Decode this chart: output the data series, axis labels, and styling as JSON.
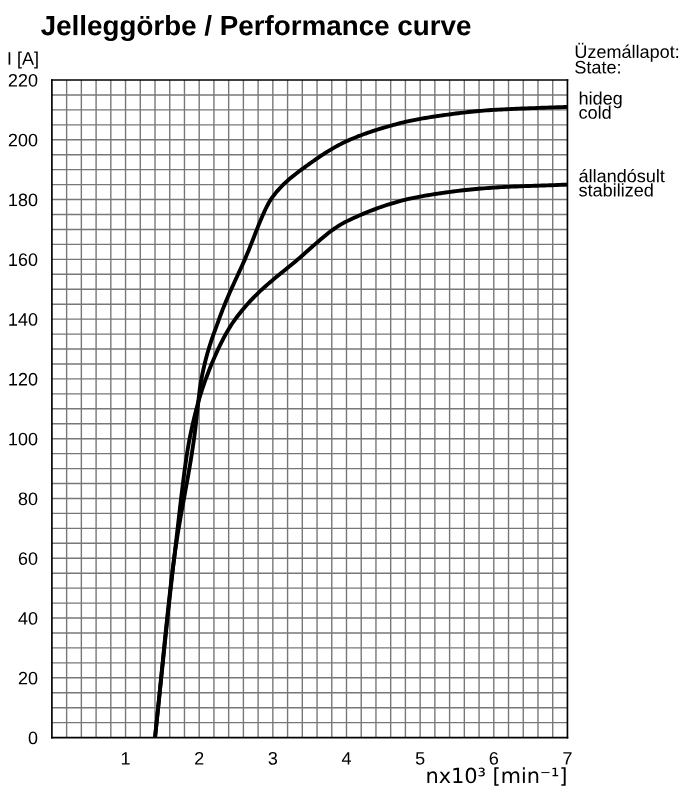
{
  "chart_data": {
    "type": "line",
    "title": "Jelleggörbe / Performance curve",
    "xlabel": "nx10³ [min⁻¹]",
    "ylabel": "I [A]",
    "annotations": [
      "Üzemállapot:\nState:"
    ],
    "series": [
      {
        "name": "hideg\ncold",
        "color": "#000000",
        "x": [
          1.4,
          1.66,
          1.93,
          2.03,
          2.27,
          2.62,
          3,
          3.5,
          4,
          4.5,
          5,
          6,
          7
        ],
        "values": [
          0,
          60,
          100,
          120,
          140,
          160,
          181,
          192,
          199.5,
          204,
          207,
          210,
          211
        ]
      },
      {
        "name": "állandósult\nstabilized",
        "color": "#000000",
        "x": [
          1.4,
          1.66,
          1.87,
          2.09,
          2.49,
          3.34,
          4,
          5,
          6,
          7
        ],
        "values": [
          0,
          60,
          100,
          120,
          140,
          160,
          172.7,
          181,
          184,
          185
        ]
      }
    ],
    "xlim": [
      0,
      7
    ],
    "ylim": [
      0,
      220
    ],
    "xticks": [
      1,
      2,
      3,
      4,
      5,
      6,
      7
    ],
    "yticks": [
      0,
      20,
      40,
      60,
      80,
      100,
      120,
      140,
      160,
      180,
      200,
      220
    ],
    "grid": true,
    "line_style": "solid",
    "marker": "none"
  }
}
